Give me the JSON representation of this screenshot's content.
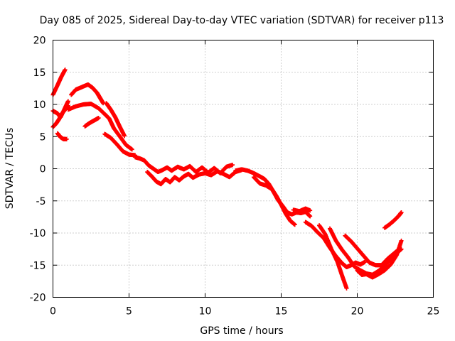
{
  "chart_data": {
    "type": "scatter",
    "title": "Day 085 of 2025, Sidereal Day-to-day VTEC variation (SDTVAR) for receiver p113",
    "xlabel": "GPS time / hours",
    "ylabel": "SDTVAR / TECUs",
    "xlim": [
      0,
      25
    ],
    "ylim": [
      -20,
      20
    ],
    "xticks": [
      0,
      5,
      10,
      15,
      20,
      25
    ],
    "yticks": [
      -20,
      -15,
      -10,
      -5,
      0,
      5,
      10,
      15,
      20
    ],
    "xtick_labels": [
      "0",
      "5",
      "10",
      "15",
      "20",
      "25"
    ],
    "ytick_labels": [
      "-20",
      "-15",
      "-10",
      "-5",
      "0",
      "5",
      "10",
      "15",
      "20"
    ],
    "grid": true,
    "marker": "+",
    "color": "#ff0000",
    "series": [
      {
        "name": "track-1",
        "x": [
          0.0,
          0.3,
          0.55,
          0.8
        ],
        "y": [
          11.5,
          13.0,
          14.3,
          15.4
        ]
      },
      {
        "name": "track-2",
        "x": [
          0.0,
          0.3,
          0.5,
          0.8,
          1.0
        ],
        "y": [
          9.0,
          8.6,
          8.0,
          9.5,
          10.5
        ]
      },
      {
        "name": "track-3",
        "x": [
          0.0,
          0.2,
          0.4,
          0.6,
          0.8,
          1.0
        ],
        "y": [
          6.5,
          7.0,
          7.7,
          8.6,
          9.2,
          9.8
        ]
      },
      {
        "name": "track-4",
        "x": [
          0.3,
          0.5,
          0.7,
          0.9
        ],
        "y": [
          5.5,
          4.9,
          4.6,
          4.6
        ]
      },
      {
        "name": "track-5",
        "x": [
          1.2,
          1.5,
          1.9,
          2.3,
          2.6,
          2.9,
          3.1,
          3.3
        ],
        "y": [
          11.5,
          12.3,
          12.7,
          13.1,
          12.6,
          11.8,
          11.0,
          10.2
        ]
      },
      {
        "name": "track-6",
        "x": [
          1.0,
          1.5,
          2.0,
          2.5,
          3.0,
          3.4,
          3.7,
          4.0,
          4.4,
          4.8,
          5.2
        ],
        "y": [
          9.2,
          9.7,
          10.0,
          10.1,
          9.4,
          8.5,
          7.8,
          6.3,
          5.0,
          3.7,
          3.0
        ]
      },
      {
        "name": "track-7",
        "x": [
          2.1,
          2.4,
          2.7,
          3.0
        ],
        "y": [
          6.6,
          7.1,
          7.5,
          7.9
        ]
      },
      {
        "name": "track-8",
        "x": [
          3.4,
          3.8,
          4.2,
          4.6,
          5.0,
          5.4
        ],
        "y": [
          5.4,
          4.8,
          3.8,
          2.7,
          2.2,
          2.1
        ]
      },
      {
        "name": "track-9",
        "x": [
          3.5,
          3.8,
          4.1,
          4.4,
          4.7
        ],
        "y": [
          10.2,
          9.2,
          8.0,
          6.5,
          5.1
        ]
      },
      {
        "name": "track-10",
        "x": [
          5.4,
          5.7,
          6.0,
          6.3,
          6.6,
          6.9,
          7.2,
          7.5,
          7.8,
          8.2,
          8.6,
          9.0,
          9.4,
          9.8,
          10.2,
          10.6,
          11.0,
          11.4,
          11.8
        ],
        "y": [
          1.8,
          1.6,
          1.3,
          0.5,
          0.0,
          -0.5,
          -0.2,
          0.2,
          -0.3,
          0.3,
          -0.1,
          0.4,
          -0.5,
          0.2,
          -0.6,
          0.1,
          -0.7,
          0.3,
          0.6
        ]
      },
      {
        "name": "track-11",
        "x": [
          6.2,
          6.5,
          6.8,
          7.1,
          7.4,
          7.7,
          8.0,
          8.3,
          8.6,
          8.9,
          9.2,
          9.6,
          10.0,
          10.4,
          10.8,
          11.2,
          11.6,
          12.0,
          12.4
        ],
        "y": [
          -0.5,
          -1.2,
          -2.0,
          -2.4,
          -1.6,
          -2.1,
          -1.3,
          -1.8,
          -1.2,
          -0.8,
          -1.4,
          -0.9,
          -0.7,
          -1.0,
          -0.4,
          -0.8,
          -1.3,
          -0.5,
          -0.2
        ]
      },
      {
        "name": "track-12",
        "x": [
          12.0,
          12.4,
          12.8,
          13.2,
          13.6,
          13.9,
          14.2,
          14.5,
          14.8,
          15.1,
          15.4,
          15.7,
          16.0,
          16.3,
          16.6,
          16.9
        ],
        "y": [
          -0.3,
          -0.1,
          -0.3,
          -0.7,
          -1.2,
          -1.6,
          -2.4,
          -3.6,
          -4.9,
          -5.8,
          -6.8,
          -7.1,
          -6.8,
          -6.9,
          -6.7,
          -7.4
        ]
      },
      {
        "name": "track-13",
        "x": [
          13.2,
          13.6,
          14.0,
          14.4,
          14.7,
          15.0,
          15.3,
          15.6,
          15.9
        ],
        "y": [
          -1.3,
          -2.3,
          -2.6,
          -3.2,
          -4.3,
          -5.6,
          -7.0,
          -8.1,
          -8.7
        ]
      },
      {
        "name": "track-14",
        "x": [
          15.8,
          16.2,
          16.6,
          16.9
        ],
        "y": [
          -6.4,
          -6.6,
          -6.2,
          -6.5
        ]
      },
      {
        "name": "track-15",
        "x": [
          16.6,
          17.0,
          17.4,
          17.8,
          18.2,
          18.6,
          19.0,
          19.3,
          19.6,
          19.9,
          20.2,
          20.5
        ],
        "y": [
          -8.3,
          -8.9,
          -9.9,
          -10.8,
          -12.3,
          -13.6,
          -14.7,
          -15.3,
          -15.0,
          -14.6,
          -14.9,
          -14.5
        ]
      },
      {
        "name": "track-16",
        "x": [
          17.5,
          17.9,
          18.3,
          18.7,
          19.0,
          19.3
        ],
        "y": [
          -8.8,
          -10.2,
          -12.5,
          -14.5,
          -16.6,
          -18.6
        ]
      },
      {
        "name": "track-17",
        "x": [
          18.2,
          18.6,
          19.0,
          19.4,
          19.8,
          20.2,
          20.6,
          21.0,
          21.4,
          21.8,
          22.2,
          22.6,
          22.9
        ],
        "y": [
          -9.3,
          -11.2,
          -12.6,
          -13.8,
          -15.2,
          -15.8,
          -16.3,
          -16.5,
          -15.9,
          -15.1,
          -14.0,
          -13.1,
          -12.5
        ]
      },
      {
        "name": "track-18",
        "x": [
          19.2,
          19.6,
          20.0,
          20.4,
          20.8,
          21.2,
          21.6,
          22.0,
          22.4,
          22.8
        ],
        "y": [
          -10.4,
          -11.3,
          -12.4,
          -13.5,
          -14.6,
          -15.0,
          -15.0,
          -14.0,
          -13.2,
          -12.4
        ]
      },
      {
        "name": "track-19",
        "x": [
          20.0,
          20.3,
          20.6,
          21.0,
          21.4,
          21.8,
          22.2,
          22.6,
          22.9
        ],
        "y": [
          -15.8,
          -16.5,
          -16.4,
          -16.9,
          -16.4,
          -15.8,
          -14.9,
          -13.4,
          -11.2
        ]
      },
      {
        "name": "track-20",
        "x": [
          21.8,
          22.1,
          22.4,
          22.7,
          22.9
        ],
        "y": [
          -9.2,
          -8.7,
          -8.1,
          -7.4,
          -6.8
        ]
      }
    ]
  }
}
